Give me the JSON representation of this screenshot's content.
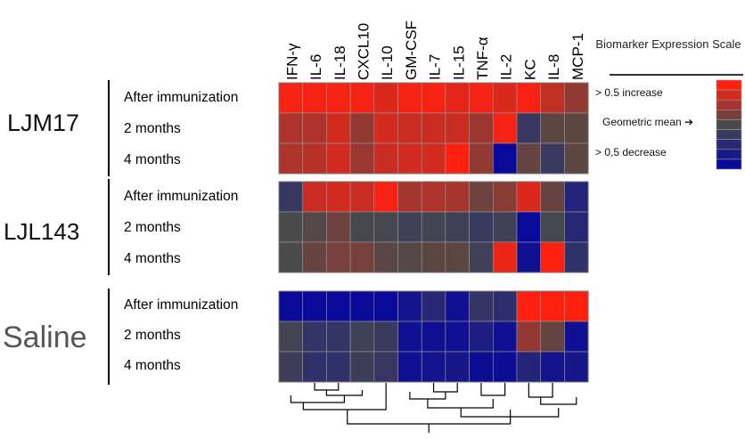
{
  "chart_data": {
    "type": "heatmap",
    "columns": [
      "IFN-γ",
      "IL-6",
      "IL-18",
      "CXCL10",
      "IL-10",
      "GM-CSF",
      "IL-7",
      "IL-15",
      "TNF-α",
      "IL-2",
      "KC",
      "IL-8",
      "MCP-1"
    ],
    "groups": [
      {
        "name": "LJM17",
        "rows": [
          {
            "label": "After immunization",
            "values": [
              0.95,
              0.95,
              0.95,
              0.95,
              0.8,
              0.95,
              0.95,
              0.85,
              0.95,
              0.8,
              0.95,
              0.65,
              0.4
            ]
          },
          {
            "label": "2 months",
            "values": [
              0.55,
              0.55,
              0.75,
              0.4,
              0.75,
              0.7,
              0.7,
              0.7,
              0.45,
              0.95,
              -0.3,
              0.1,
              0.1
            ]
          },
          {
            "label": "4 months",
            "values": [
              0.55,
              0.6,
              0.75,
              0.45,
              0.7,
              0.75,
              0.75,
              1.0,
              0.4,
              -1.0,
              0.15,
              -0.25,
              0.1
            ]
          }
        ]
      },
      {
        "name": "LJL143",
        "rows": [
          {
            "label": "After immunization",
            "values": [
              -0.3,
              0.7,
              0.75,
              0.7,
              0.95,
              0.5,
              0.55,
              0.5,
              0.2,
              0.35,
              0.8,
              0.15,
              -0.6
            ]
          },
          {
            "label": "2 months",
            "values": [
              0.0,
              0.05,
              0.2,
              -0.05,
              -0.05,
              -0.15,
              -0.1,
              -0.15,
              -0.25,
              -0.15,
              -1.0,
              -0.05,
              -0.55
            ]
          },
          {
            "label": "4 months",
            "values": [
              0.0,
              0.15,
              0.25,
              0.25,
              0.1,
              0.05,
              0.1,
              0.1,
              -0.15,
              0.9,
              -0.9,
              1.0,
              -0.4
            ]
          }
        ]
      },
      {
        "name": "Saline",
        "rows": [
          {
            "label": "After immunization",
            "values": [
              -1.0,
              -1.0,
              -1.0,
              -1.0,
              -1.0,
              -0.85,
              -0.55,
              -0.9,
              -0.35,
              -0.45,
              1.0,
              1.0,
              1.0
            ]
          },
          {
            "label": "2 months",
            "values": [
              -0.1,
              -0.35,
              -0.35,
              -0.15,
              -0.25,
              -0.9,
              -0.9,
              -0.9,
              -0.7,
              -0.9,
              0.4,
              0.15,
              -0.9
            ]
          },
          {
            "label": "4 months",
            "values": [
              -0.2,
              -0.4,
              -0.4,
              -0.2,
              -0.3,
              -0.9,
              -0.85,
              -0.8,
              -0.95,
              -0.95,
              -0.6,
              -0.85,
              -0.8
            ]
          }
        ]
      }
    ],
    "scale": {
      "title": "Biomarker Expression Scale",
      "increase_label": "> 0.5 increase",
      "mean_label": "Geometric mean ➔",
      "decrease_label": "> 0,5 decrease",
      "high_color": "#ff2010",
      "mid_color": "#4a4a4a",
      "low_color": "#0a0a9a",
      "steps": [
        1.0,
        0.75,
        0.5,
        0.25,
        0.0,
        -0.25,
        -0.5,
        -0.75,
        -1.0
      ]
    },
    "dendrogram": "hierarchical clustering of the 13 columns"
  }
}
